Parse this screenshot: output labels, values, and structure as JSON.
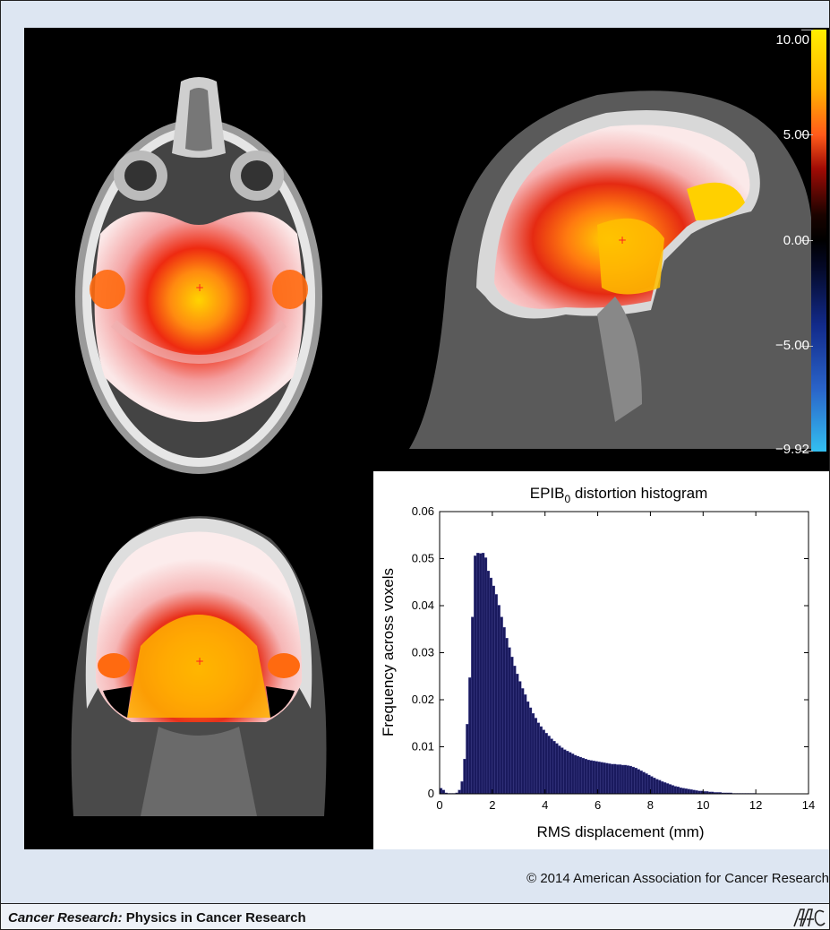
{
  "colorbar": {
    "ticks": [
      "10.00",
      "5.00",
      "0.00",
      "−5.00",
      "−9.92"
    ]
  },
  "chart_data": {
    "type": "bar",
    "title_main": "EPIB",
    "title_sub": "0",
    "title_rest": " distortion histogram",
    "xlabel": "RMS displacement (mm)",
    "ylabel": "Frequency across voxels",
    "xlim": [
      0,
      14
    ],
    "ylim": [
      0,
      0.06
    ],
    "x_ticks": [
      0,
      2,
      4,
      6,
      8,
      10,
      12,
      14
    ],
    "y_ticks": [
      0,
      0.01,
      0.02,
      0.03,
      0.04,
      0.05,
      0.06
    ],
    "y_tick_labels": [
      "0",
      "0.01",
      "0.02",
      "0.03",
      "0.04",
      "0.05",
      "0.06"
    ],
    "bin_width": 0.1,
    "bin_start": 0,
    "bar_color": "#1a1a5e",
    "grid": false,
    "values": [
      0.0012,
      0.0008,
      0.0002,
      0.0001,
      0.0001,
      0.0001,
      0.0002,
      0.0008,
      0.0026,
      0.0074,
      0.0148,
      0.0247,
      0.0376,
      0.0506,
      0.0512,
      0.0511,
      0.0512,
      0.0502,
      0.0474,
      0.0459,
      0.0442,
      0.0424,
      0.0401,
      0.0376,
      0.0354,
      0.0331,
      0.0311,
      0.0291,
      0.0272,
      0.0255,
      0.0239,
      0.0224,
      0.0211,
      0.0196,
      0.0183,
      0.0171,
      0.0161,
      0.0151,
      0.0143,
      0.0136,
      0.0129,
      0.0123,
      0.0117,
      0.0112,
      0.0107,
      0.0102,
      0.0098,
      0.0094,
      0.0091,
      0.0088,
      0.0085,
      0.0082,
      0.008,
      0.0078,
      0.0076,
      0.0074,
      0.0072,
      0.0071,
      0.007,
      0.0069,
      0.0068,
      0.0067,
      0.0066,
      0.0065,
      0.0064,
      0.0063,
      0.0063,
      0.0062,
      0.0062,
      0.0061,
      0.0061,
      0.006,
      0.0059,
      0.0057,
      0.0055,
      0.0052,
      0.0049,
      0.0046,
      0.0043,
      0.004,
      0.0037,
      0.0034,
      0.0031,
      0.0029,
      0.0026,
      0.0024,
      0.0022,
      0.002,
      0.0018,
      0.0016,
      0.0015,
      0.0013,
      0.0012,
      0.0011,
      0.001,
      0.0009,
      0.0008,
      0.0007,
      0.0006,
      0.0006,
      0.0005,
      0.0005,
      0.0004,
      0.0004,
      0.0003,
      0.0003,
      0.0003,
      0.0002,
      0.0002,
      0.0002,
      0.0002,
      0.0001,
      0.0001,
      0.0001,
      0.0001,
      0.0001,
      0.0001,
      0.0001,
      0.0001,
      0.0001
    ]
  },
  "copyright": "© 2014 American Association for Cancer Research",
  "footer": {
    "journal_italic": "Cancer Research:",
    "journal_section": " Physics in Cancer Research"
  }
}
